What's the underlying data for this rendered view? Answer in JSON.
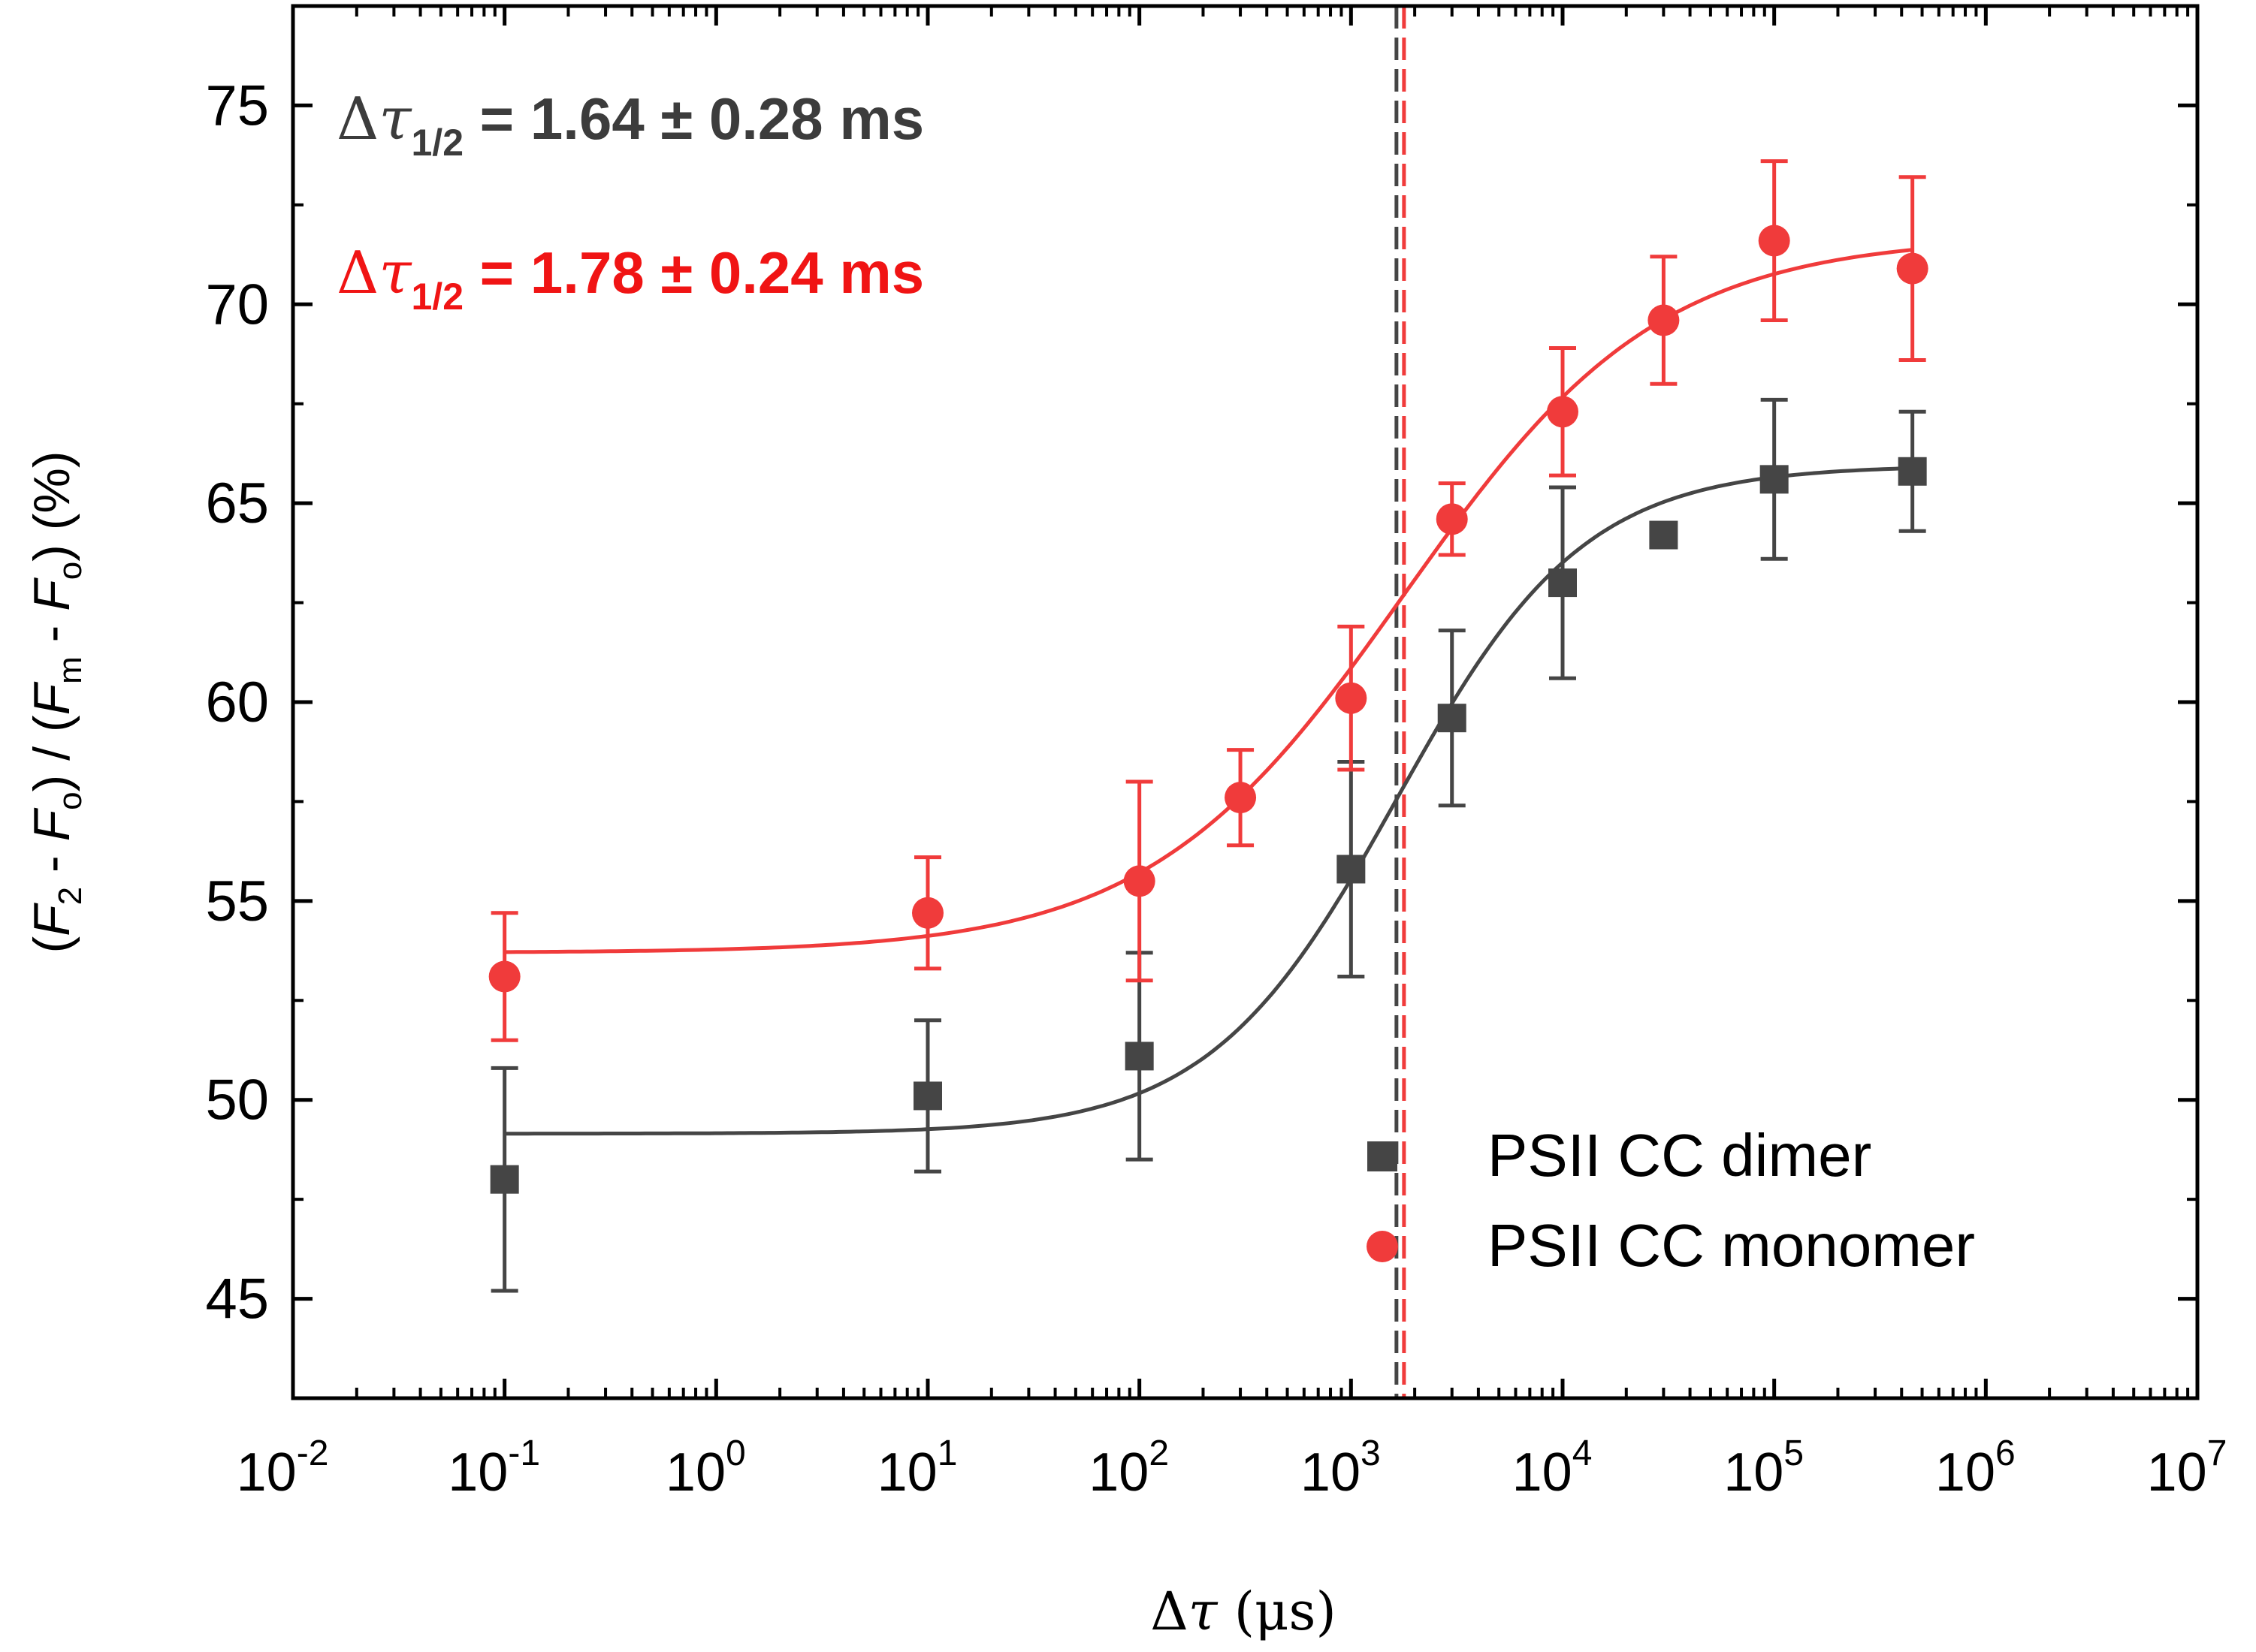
{
  "chart_data": {
    "type": "scatter",
    "x_scale": "log",
    "xlim": [
      0.01,
      10000000
    ],
    "ylim": [
      42.5,
      77.5
    ],
    "xlabel": "Δτ (μs)",
    "ylabel": "(F2 - Fo) / (Fm - Fo) (%)",
    "x_ticks": [
      0.01,
      0.1,
      1,
      10,
      100,
      1000,
      10000,
      100000,
      1000000,
      10000000
    ],
    "x_tick_labels": [
      {
        "base": "10",
        "exp": "-2"
      },
      {
        "base": "10",
        "exp": "-1"
      },
      {
        "base": "10",
        "exp": "0"
      },
      {
        "base": "10",
        "exp": "1"
      },
      {
        "base": "10",
        "exp": "2"
      },
      {
        "base": "10",
        "exp": "3"
      },
      {
        "base": "10",
        "exp": "4"
      },
      {
        "base": "10",
        "exp": "5"
      },
      {
        "base": "10",
        "exp": "6"
      },
      {
        "base": "10",
        "exp": "7"
      }
    ],
    "y_ticks": [
      45,
      50,
      55,
      60,
      65,
      70,
      75
    ],
    "y_tick_labels": [
      "45",
      "50",
      "55",
      "60",
      "65",
      "70",
      "75"
    ],
    "series": [
      {
        "name": "PSII CC dimer",
        "color": "#454545",
        "marker": "square",
        "x": [
          0.1,
          10,
          100,
          1000,
          3000,
          10000,
          30000,
          100000,
          450000
        ],
        "y": [
          48.0,
          50.1,
          51.1,
          55.8,
          59.6,
          63.0,
          64.2,
          65.6,
          65.8
        ],
        "err": [
          2.8,
          1.9,
          2.6,
          2.7,
          2.2,
          2.4,
          0.2,
          2.0,
          1.5
        ],
        "fit": {
          "y_min": 49.15,
          "y_max": 65.95,
          "x_half": 1640,
          "slope": 0.98
        }
      },
      {
        "name": "PSII CC monomer",
        "color": "#f03b3b",
        "marker": "circle",
        "x": [
          0.1,
          10,
          100,
          300,
          1000,
          3000,
          10000,
          30000,
          100000,
          450000
        ],
        "y": [
          53.1,
          54.7,
          55.5,
          57.6,
          60.1,
          64.6,
          67.3,
          69.6,
          71.6,
          70.9
        ],
        "err": [
          1.6,
          1.4,
          2.5,
          1.2,
          1.8,
          0.9,
          1.6,
          1.6,
          2.0,
          2.3
        ],
        "fit": {
          "y_min": 53.7,
          "y_max": 71.7,
          "x_half": 1780,
          "slope": 0.72
        }
      }
    ],
    "vlines": [
      {
        "x": 1640,
        "color": "#454545",
        "style": "dashed"
      },
      {
        "x": 1780,
        "color": "#f03b3b",
        "style": "dashed"
      }
    ],
    "annotations": [
      {
        "prefix": "Δ",
        "tau": "τ",
        "sub": "1/2",
        "text": " = 1.64 ± 0.28 ms",
        "color": "#3c3c3c"
      },
      {
        "prefix": "Δ",
        "tau": "τ",
        "sub": "1/2",
        "text": " = 1.78 ± 0.24 ms",
        "color": "#f01414"
      }
    ],
    "legend": {
      "position": "lower-right",
      "entries": [
        "PSII CC dimer",
        "PSII CC monomer"
      ]
    }
  }
}
